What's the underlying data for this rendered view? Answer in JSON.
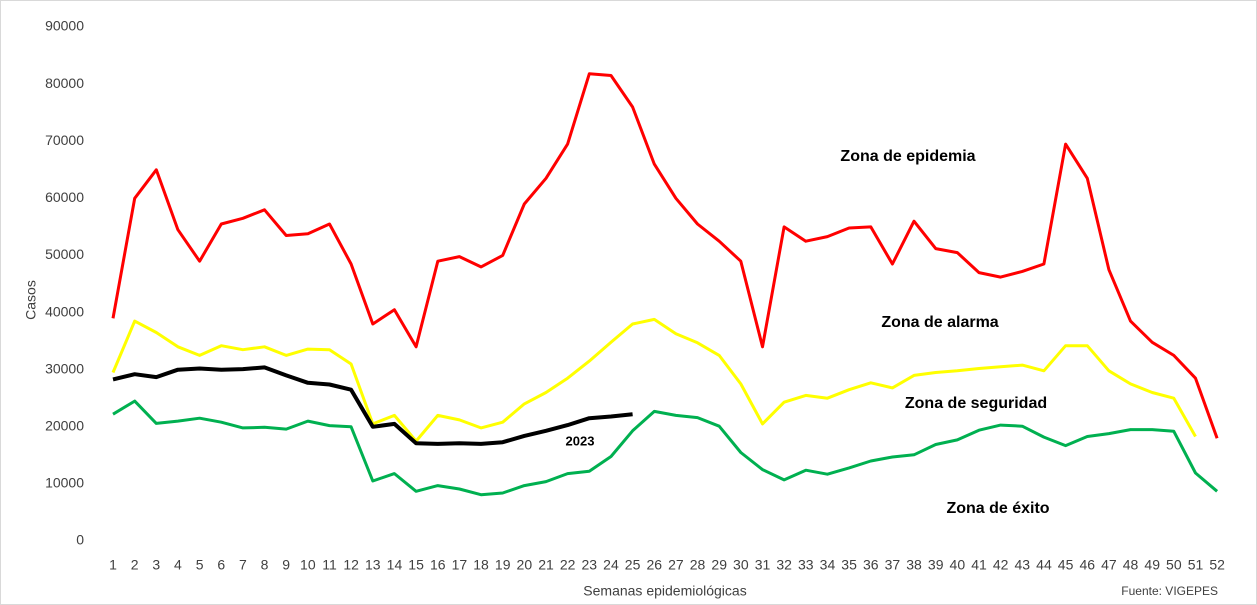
{
  "chart_data": {
    "type": "line",
    "x_label": "Semanas epidemiológicas",
    "y_label": "Casos",
    "source": "Fuente: VIGEPES",
    "categories": [
      "1",
      "2",
      "3",
      "4",
      "5",
      "6",
      "7",
      "8",
      "9",
      "10",
      "11",
      "12",
      "13",
      "14",
      "15",
      "16",
      "17",
      "18",
      "19",
      "20",
      "21",
      "22",
      "23",
      "24",
      "25",
      "26",
      "27",
      "28",
      "29",
      "30",
      "31",
      "32",
      "33",
      "34",
      "35",
      "36",
      "37",
      "38",
      "39",
      "40",
      "41",
      "42",
      "43",
      "44",
      "45",
      "46",
      "47",
      "48",
      "49",
      "50",
      "51",
      "52"
    ],
    "ylim": [
      0,
      90000
    ],
    "yticks": [
      0,
      10000,
      20000,
      30000,
      40000,
      50000,
      60000,
      70000,
      80000,
      90000
    ],
    "grid": false,
    "series": [
      {
        "name": "Zona de epidemia",
        "color": "#ff0000",
        "values": [
          39000,
          60000,
          65000,
          54500,
          49000,
          55500,
          56500,
          58000,
          53500,
          53800,
          55500,
          48500,
          38000,
          40500,
          34000,
          49000,
          49800,
          48000,
          50000,
          59000,
          63500,
          69500,
          81800,
          81500,
          76000,
          66000,
          60000,
          55500,
          52500,
          49000,
          34000,
          55000,
          52500,
          53300,
          54800,
          55000,
          48500,
          56000,
          51200,
          50500,
          47000,
          46200,
          47200,
          48500,
          69500,
          63500,
          47500,
          38500,
          34800,
          32500,
          28500,
          18000
        ]
      },
      {
        "name": "Zona de alarma",
        "color": "#ffff00",
        "values": [
          29500,
          38500,
          36500,
          34000,
          32500,
          34200,
          33500,
          34000,
          32500,
          33600,
          33500,
          31000,
          20500,
          22000,
          17500,
          22000,
          21200,
          19800,
          20800,
          24000,
          26000,
          28500,
          31500,
          34800,
          38000,
          38800,
          36300,
          34700,
          32500,
          27500,
          20500,
          24300,
          25500,
          25000,
          26500,
          27700,
          26800,
          29000,
          29500,
          29800,
          30200,
          30500,
          30800,
          29800,
          34200,
          34200,
          29800,
          27500,
          26000,
          25000,
          18300,
          null
        ]
      },
      {
        "name": "Zona de éxito",
        "color": "#00b050",
        "values": [
          22200,
          24500,
          20600,
          21000,
          21500,
          20800,
          19800,
          19900,
          19600,
          21000,
          20200,
          20000,
          10500,
          11800,
          8700,
          9700,
          9100,
          8100,
          8400,
          9700,
          10400,
          11800,
          12200,
          14800,
          19300,
          22700,
          22000,
          21600,
          20100,
          15500,
          12500,
          10700,
          12400,
          11700,
          12800,
          14000,
          14700,
          15100,
          16900,
          17700,
          19400,
          20300,
          20100,
          18200,
          16700,
          18300,
          18800,
          19500,
          19500,
          19200,
          11900,
          8700
        ]
      },
      {
        "name": "2023",
        "color": "#000000",
        "values": [
          28300,
          29200,
          28700,
          30000,
          30200,
          30000,
          30100,
          30400,
          29000,
          27700,
          27400,
          26500,
          20000,
          20500,
          17100,
          17000,
          17100,
          17000,
          17300,
          18400,
          19300,
          20300,
          21500,
          21800,
          22200,
          null,
          null,
          null,
          null,
          null,
          null,
          null,
          null,
          null,
          null,
          null,
          null,
          null,
          null,
          null,
          null,
          null,
          null,
          null,
          null,
          null,
          null,
          null,
          null,
          null,
          null,
          null
        ]
      }
    ],
    "zone_label": "Zona de seguridad"
  }
}
